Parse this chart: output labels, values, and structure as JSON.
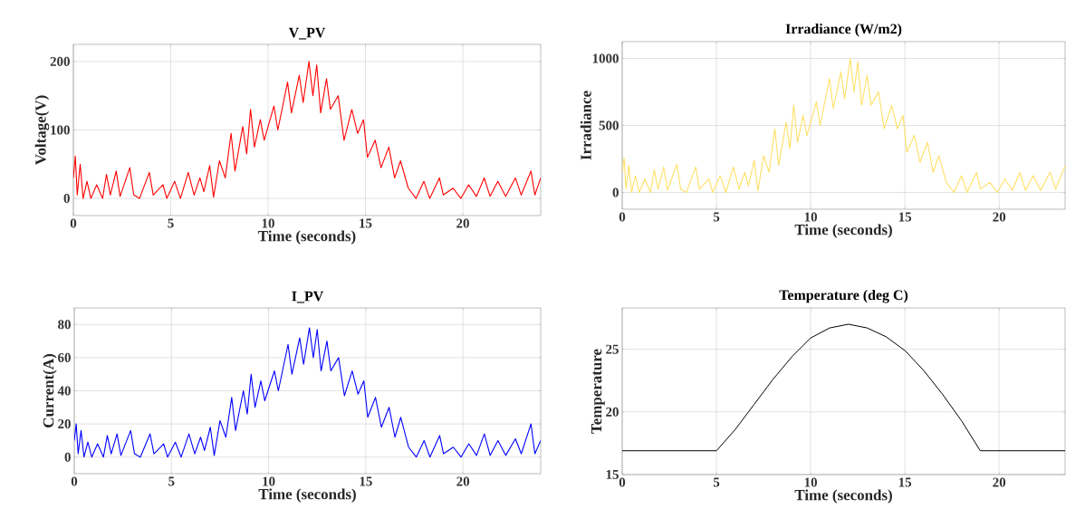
{
  "chart_data": [
    {
      "type": "line",
      "title": "V_PV",
      "xlabel": "Time (seconds)",
      "ylabel": "Voltage(V)",
      "color": "#ff0000",
      "grid": true,
      "xlim": [
        0,
        24
      ],
      "ylim": [
        -25,
        225
      ],
      "xticks": [
        0,
        5,
        10,
        15,
        20
      ],
      "yticks": [
        0,
        100,
        200
      ],
      "x": [
        0,
        0.1,
        0.2,
        0.35,
        0.5,
        0.7,
        0.9,
        1.2,
        1.5,
        1.7,
        1.9,
        2.2,
        2.4,
        2.9,
        3.1,
        3.4,
        3.9,
        4.1,
        4.6,
        4.8,
        5.2,
        5.5,
        5.9,
        6.2,
        6.5,
        6.7,
        7.0,
        7.2,
        7.5,
        7.8,
        8.1,
        8.3,
        8.7,
        8.9,
        9.1,
        9.3,
        9.6,
        9.8,
        10.3,
        10.5,
        11.0,
        11.2,
        11.6,
        11.8,
        12.1,
        12.3,
        12.5,
        12.7,
        13.0,
        13.2,
        13.6,
        13.9,
        14.3,
        14.6,
        14.9,
        15.1,
        15.5,
        15.8,
        16.2,
        16.5,
        16.8,
        17.2,
        17.6,
        18.0,
        18.3,
        18.8,
        19.0,
        19.5,
        19.9,
        20.3,
        20.7,
        21.1,
        21.4,
        21.8,
        22.2,
        22.7,
        23.0,
        23.5,
        23.7,
        24
      ],
      "values": [
        30,
        62,
        5,
        50,
        0,
        25,
        0,
        20,
        0,
        35,
        5,
        40,
        3,
        45,
        5,
        0,
        38,
        5,
        20,
        0,
        25,
        0,
        38,
        5,
        30,
        10,
        48,
        2,
        55,
        30,
        95,
        40,
        105,
        65,
        130,
        75,
        115,
        85,
        135,
        100,
        170,
        125,
        180,
        140,
        200,
        150,
        195,
        125,
        175,
        130,
        150,
        85,
        130,
        95,
        115,
        60,
        85,
        45,
        75,
        30,
        55,
        15,
        0,
        25,
        0,
        30,
        5,
        15,
        0,
        20,
        3,
        30,
        3,
        25,
        3,
        30,
        5,
        40,
        5,
        30
      ]
    },
    {
      "type": "line",
      "title": "Irradiance (W/m2)",
      "xlabel": "Time (seconds)",
      "ylabel": "Irradiance",
      "color": "#ffe066",
      "grid": true,
      "xlim": [
        0,
        23.5
      ],
      "ylim": [
        -125,
        1125
      ],
      "xticks": [
        0,
        5,
        10,
        15,
        20
      ],
      "yticks": [
        0,
        500,
        1000
      ],
      "x": [
        0,
        0.1,
        0.2,
        0.35,
        0.5,
        0.7,
        0.9,
        1.2,
        1.5,
        1.7,
        1.9,
        2.2,
        2.4,
        2.9,
        3.1,
        3.4,
        3.9,
        4.1,
        4.6,
        4.8,
        5.2,
        5.5,
        5.9,
        6.2,
        6.5,
        6.7,
        7.0,
        7.2,
        7.5,
        7.8,
        8.1,
        8.3,
        8.7,
        8.9,
        9.1,
        9.3,
        9.6,
        9.8,
        10.3,
        10.5,
        11.0,
        11.2,
        11.6,
        11.8,
        12.1,
        12.3,
        12.5,
        12.7,
        13.0,
        13.2,
        13.6,
        13.9,
        14.3,
        14.6,
        14.9,
        15.1,
        15.5,
        15.8,
        16.2,
        16.5,
        16.8,
        17.2,
        17.6,
        18.0,
        18.3,
        18.8,
        19.0,
        19.5,
        19.9,
        20.3,
        20.7,
        21.1,
        21.4,
        21.8,
        22.2,
        22.7,
        23.0,
        23.5
      ],
      "values": [
        150,
        260,
        25,
        200,
        0,
        125,
        0,
        100,
        0,
        170,
        25,
        190,
        15,
        210,
        25,
        0,
        190,
        25,
        100,
        0,
        125,
        0,
        190,
        25,
        150,
        50,
        240,
        10,
        275,
        150,
        475,
        200,
        525,
        325,
        650,
        375,
        575,
        425,
        675,
        500,
        850,
        625,
        900,
        700,
        1000,
        750,
        975,
        650,
        875,
        650,
        750,
        475,
        650,
        475,
        575,
        300,
        425,
        225,
        375,
        150,
        275,
        75,
        0,
        125,
        0,
        150,
        25,
        75,
        0,
        100,
        15,
        150,
        15,
        125,
        15,
        150,
        25,
        200
      ]
    },
    {
      "type": "line",
      "title": "I_PV",
      "xlabel": "Time (seconds)",
      "ylabel": "Current(A)",
      "color": "#0000ff",
      "grid": true,
      "xlim": [
        0,
        24
      ],
      "ylim": [
        -10,
        90
      ],
      "xticks": [
        0,
        5,
        10,
        15,
        20
      ],
      "yticks": [
        0,
        20,
        40,
        60,
        80
      ],
      "x": [
        0,
        0.1,
        0.2,
        0.35,
        0.5,
        0.7,
        0.9,
        1.2,
        1.5,
        1.7,
        1.9,
        2.2,
        2.4,
        2.9,
        3.1,
        3.4,
        3.9,
        4.1,
        4.6,
        4.8,
        5.2,
        5.5,
        5.9,
        6.2,
        6.5,
        6.7,
        7.0,
        7.2,
        7.5,
        7.8,
        8.1,
        8.3,
        8.7,
        8.9,
        9.1,
        9.3,
        9.6,
        9.8,
        10.3,
        10.5,
        11.0,
        11.2,
        11.6,
        11.8,
        12.1,
        12.3,
        12.5,
        12.7,
        13.0,
        13.2,
        13.6,
        13.9,
        14.3,
        14.6,
        14.9,
        15.1,
        15.5,
        15.8,
        16.2,
        16.5,
        16.8,
        17.2,
        17.6,
        18.0,
        18.3,
        18.8,
        19.0,
        19.5,
        19.9,
        20.3,
        20.7,
        21.1,
        21.4,
        21.8,
        22.2,
        22.7,
        23.0,
        23.5,
        23.7,
        24
      ],
      "values": [
        10,
        20,
        2,
        16,
        0,
        9,
        0,
        8,
        0,
        13,
        2,
        14,
        1,
        16,
        2,
        0,
        14,
        2,
        8,
        0,
        9,
        0,
        14,
        2,
        12,
        4,
        18,
        1,
        22,
        12,
        36,
        16,
        40,
        26,
        50,
        30,
        46,
        34,
        52,
        40,
        68,
        50,
        72,
        56,
        78,
        60,
        77,
        52,
        70,
        52,
        60,
        37,
        52,
        38,
        46,
        24,
        36,
        18,
        30,
        12,
        24,
        6,
        0,
        10,
        0,
        13,
        2,
        6,
        0,
        8,
        1,
        14,
        1,
        10,
        1,
        11,
        2,
        20,
        2,
        10
      ]
    },
    {
      "type": "line",
      "title": "Temperature (deg C)",
      "xlabel": "Time (seconds)",
      "ylabel": "Temperature",
      "color": "#000000",
      "grid": true,
      "xlim": [
        0,
        23.5
      ],
      "ylim": [
        15,
        28.3
      ],
      "xticks": [
        0,
        5,
        10,
        15,
        20
      ],
      "yticks": [
        15,
        20,
        25
      ],
      "x": [
        0,
        5,
        6,
        7,
        8,
        9,
        10,
        11,
        12,
        13,
        14,
        15,
        16,
        17,
        18,
        19,
        23.5
      ],
      "values": [
        16.9,
        16.9,
        18.6,
        20.6,
        22.6,
        24.4,
        25.9,
        26.7,
        27,
        26.7,
        26,
        24.9,
        23.3,
        21.4,
        19.3,
        16.9,
        16.9
      ]
    }
  ]
}
